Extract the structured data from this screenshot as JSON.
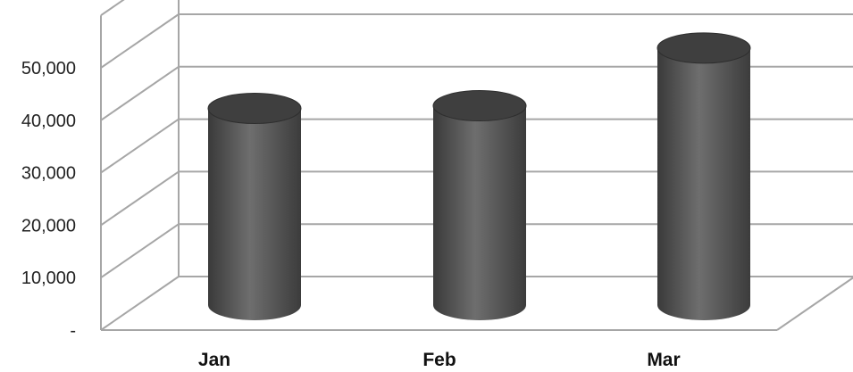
{
  "chart_data": {
    "type": "bar",
    "style": "3d-cylinder",
    "categories": [
      "Jan",
      "Feb",
      "Mar"
    ],
    "values": [
      37500,
      38000,
      49000
    ],
    "ylim": [
      0,
      60000
    ],
    "yticks": [
      0,
      10000,
      20000,
      30000,
      40000,
      50000
    ],
    "ytick_labels": [
      "-",
      "10,000",
      "20,000",
      "30,000",
      "40,000",
      "50,000"
    ],
    "grid": true,
    "legend": "none",
    "bar_color": "#5c5c5c",
    "grid_color": "#a6a6a6"
  }
}
